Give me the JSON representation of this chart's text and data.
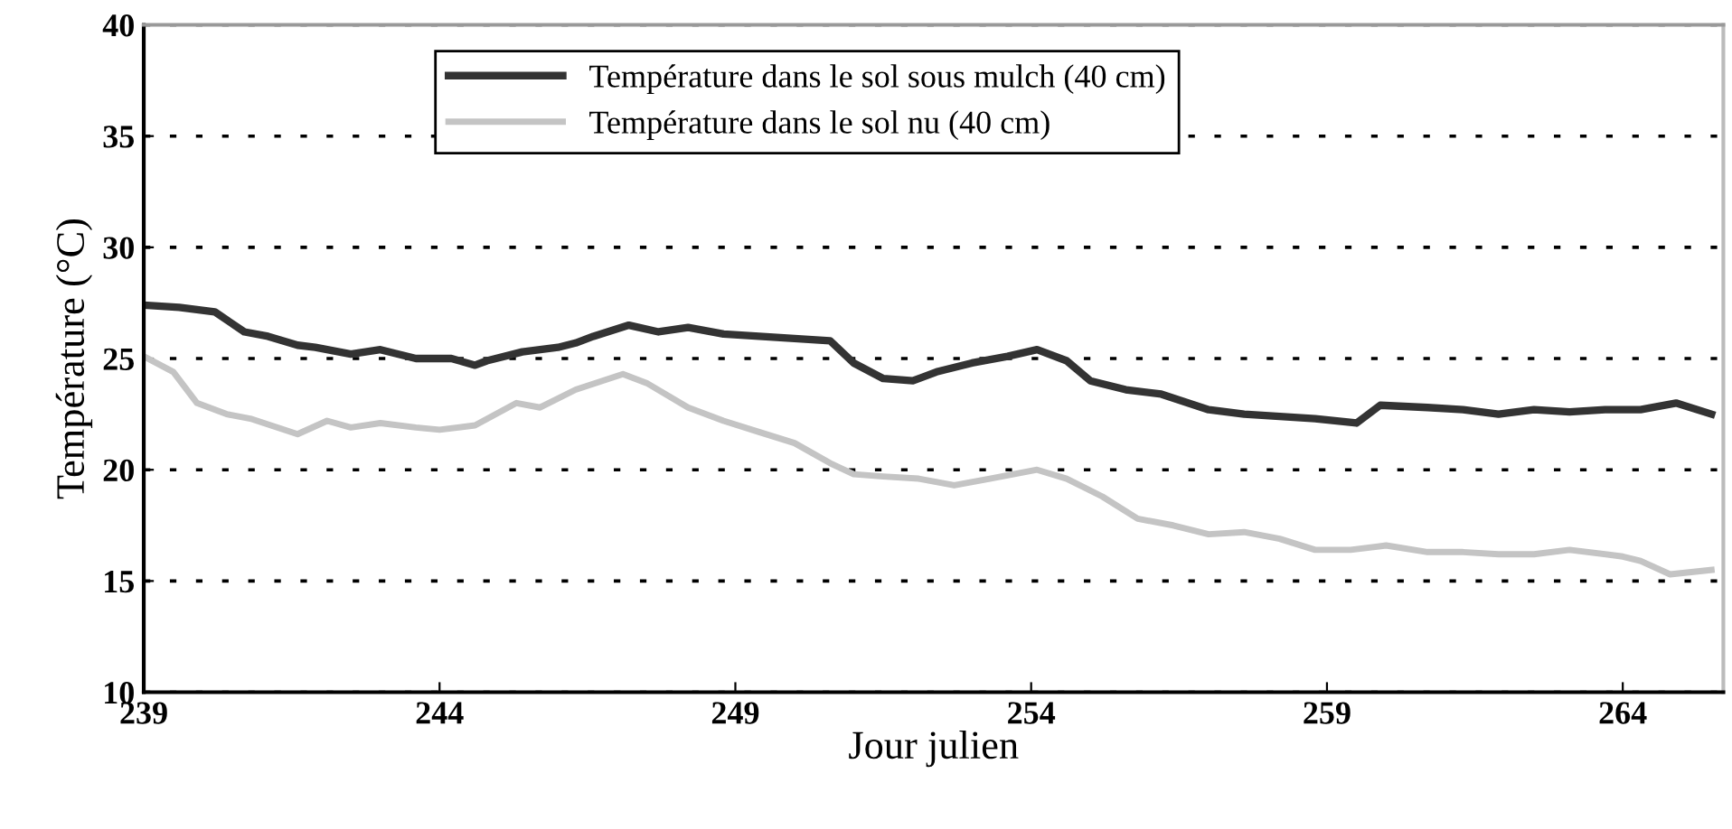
{
  "chart_data": {
    "type": "line",
    "xlabel": "Jour julien",
    "ylabel": "Température (°C)",
    "xlim": [
      239,
      265.7
    ],
    "xticks": [
      239,
      244,
      249,
      254,
      259,
      264
    ],
    "ylim": [
      10,
      40
    ],
    "yticks": [
      10,
      15,
      20,
      25,
      30,
      35,
      40
    ],
    "grid": "y",
    "legend": "top",
    "marker": "none",
    "line_style": "solid",
    "series": [
      {
        "name": "Température dans le sol sous mulch (40 cm)",
        "color": "#333333",
        "x": [
          239.0,
          239.6,
          240.2,
          240.7,
          241.1,
          241.6,
          241.9,
          242.5,
          243.0,
          243.6,
          244.2,
          244.6,
          244.8,
          245.4,
          246.0,
          246.3,
          246.6,
          247.2,
          247.7,
          248.2,
          248.8,
          249.4,
          250.0,
          250.6,
          251.0,
          251.5,
          252.0,
          252.4,
          253.0,
          253.6,
          254.1,
          254.6,
          255.0,
          255.6,
          256.2,
          257.0,
          257.6,
          258.2,
          258.8,
          259.5,
          259.9,
          260.7,
          261.3,
          261.9,
          262.5,
          263.1,
          263.7,
          264.3,
          264.9,
          265.5
        ],
        "values": [
          27.4,
          27.3,
          27.1,
          26.2,
          26.0,
          25.6,
          25.5,
          25.2,
          25.4,
          25.0,
          25.0,
          24.7,
          24.9,
          25.3,
          25.5,
          25.7,
          26.0,
          26.5,
          26.2,
          26.4,
          26.1,
          26.0,
          25.9,
          25.8,
          24.8,
          24.1,
          24.0,
          24.4,
          24.8,
          25.1,
          25.4,
          24.9,
          24.0,
          23.6,
          23.4,
          22.7,
          22.5,
          22.4,
          22.3,
          22.1,
          22.9,
          22.8,
          22.7,
          22.5,
          22.7,
          22.6,
          22.7,
          22.7,
          23.0,
          22.5
        ]
      },
      {
        "name": "Température dans le sol nu (40 cm)",
        "color": "#c4c4c4",
        "x": [
          239.0,
          239.5,
          239.9,
          240.4,
          240.8,
          241.6,
          242.1,
          242.5,
          243.0,
          243.6,
          244.0,
          244.6,
          245.3,
          245.7,
          246.3,
          247.1,
          247.5,
          248.2,
          248.8,
          249.4,
          250.0,
          250.6,
          251.0,
          251.5,
          252.1,
          252.7,
          253.3,
          254.1,
          254.6,
          255.2,
          255.8,
          256.4,
          257.0,
          257.6,
          258.2,
          258.8,
          259.4,
          260.0,
          260.7,
          261.3,
          261.9,
          262.5,
          263.1,
          264.0,
          264.3,
          264.8,
          265.5
        ],
        "values": [
          25.1,
          24.4,
          23.0,
          22.5,
          22.3,
          21.6,
          22.2,
          21.9,
          22.1,
          21.9,
          21.8,
          22.0,
          23.0,
          22.8,
          23.6,
          24.3,
          23.9,
          22.8,
          22.2,
          21.7,
          21.2,
          20.3,
          19.8,
          19.7,
          19.6,
          19.3,
          19.6,
          20.0,
          19.6,
          18.8,
          17.8,
          17.5,
          17.1,
          17.2,
          16.9,
          16.4,
          16.4,
          16.6,
          16.3,
          16.3,
          16.2,
          16.2,
          16.4,
          16.1,
          15.9,
          15.3,
          15.5
        ]
      }
    ]
  }
}
